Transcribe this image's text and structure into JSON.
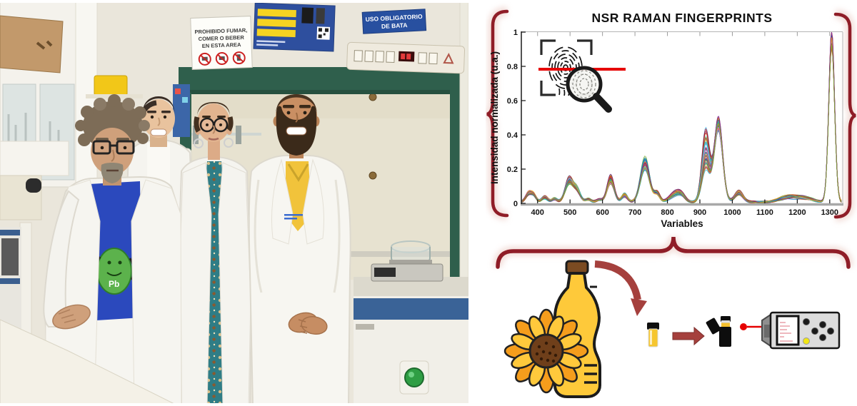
{
  "photo": {
    "signs": {
      "prohibition_lines": [
        "PROHIBIDO FUMAR,",
        "COMER O BEBER",
        "EN ESTA AREA"
      ],
      "bata_lines": [
        "USO OBLIGATORIO",
        "DE BATA"
      ]
    },
    "tshirt_label": "Pb",
    "people_count": "4"
  },
  "chart_data": {
    "type": "line",
    "title": "NSR RAMAN FINGERPRINTS",
    "xlabel": "Variables",
    "ylabel": "Intensidad normalizada (u.a.)",
    "xlim": [
      350,
      1340
    ],
    "ylim": [
      0,
      1
    ],
    "xticks": [
      400,
      500,
      600,
      700,
      800,
      900,
      1000,
      1100,
      1200,
      1300
    ],
    "yticks": [
      0,
      0.2,
      0.4,
      0.6,
      0.8,
      1
    ],
    "grid": false,
    "legend": null,
    "series_count": 55,
    "series_style": "overlapping normalized Raman spectra of oil samples",
    "palette": [
      "#0072BD",
      "#D95319",
      "#EDB120",
      "#7E2F8E",
      "#77AC30",
      "#4DBEEE",
      "#A2142F",
      "#E377C2",
      "#8C564B",
      "#17BECF"
    ],
    "baseline": 0.008,
    "peaks": [
      {
        "center": 372,
        "height": 0.055,
        "width": 9,
        "spread": 0.3
      },
      {
        "center": 388,
        "height": 0.045,
        "width": 8,
        "spread": 0.3
      },
      {
        "center": 422,
        "height": 0.035,
        "width": 9,
        "spread": 0.35
      },
      {
        "center": 452,
        "height": 0.022,
        "width": 8,
        "spread": 0.35
      },
      {
        "center": 497,
        "height": 0.15,
        "width": 12,
        "spread": 0.35
      },
      {
        "center": 521,
        "height": 0.085,
        "width": 11,
        "spread": 0.4
      },
      {
        "center": 556,
        "height": 0.02,
        "width": 8,
        "spread": 0.35
      },
      {
        "center": 590,
        "height": 0.015,
        "width": 9,
        "spread": 0.3
      },
      {
        "center": 625,
        "height": 0.165,
        "width": 11,
        "spread": 0.3
      },
      {
        "center": 668,
        "height": 0.05,
        "width": 9,
        "spread": 0.35
      },
      {
        "center": 731,
        "height": 0.265,
        "width": 14,
        "spread": 0.25
      },
      {
        "center": 768,
        "height": 0.06,
        "width": 9,
        "spread": 0.35
      },
      {
        "center": 822,
        "height": 0.06,
        "width": 16,
        "spread": 0.5
      },
      {
        "center": 843,
        "height": 0.045,
        "width": 12,
        "spread": 0.5
      },
      {
        "center": 918,
        "height": 0.43,
        "width": 12,
        "spread": 0.55
      },
      {
        "center": 957,
        "height": 0.5,
        "width": 13,
        "spread": 0.12
      },
      {
        "center": 1020,
        "height": 0.075,
        "width": 13,
        "spread": 0.45
      },
      {
        "center": 1170,
        "height": 0.038,
        "width": 25,
        "spread": 0.5
      },
      {
        "center": 1222,
        "height": 0.032,
        "width": 25,
        "spread": 0.5
      },
      {
        "center": 1306,
        "height": 1.0,
        "width": 9,
        "spread": 0.04
      }
    ]
  },
  "fingerprint_icon": {
    "parts": [
      "fingerprint-scan-icon",
      "scan-line",
      "magnifier-icon"
    ]
  },
  "workflow": {
    "steps": [
      {
        "icon": "sunflower-icon"
      },
      {
        "icon": "oil-bottle-icon"
      },
      {
        "icon": "pour-arrow-icon"
      },
      {
        "icon": "sample-vial-icon"
      },
      {
        "icon": "transfer-arrow-icon"
      },
      {
        "icon": "vial-in-sample-holder-icon"
      },
      {
        "icon": "laser-beam-icon"
      },
      {
        "icon": "portable-raman-spectrometer-icon"
      }
    ]
  },
  "colors": {
    "accent_red": "#8f1d27",
    "arrow_red": "#a5403d",
    "laser_red": "#e60000",
    "bottle_yellow": "#fec93a",
    "hood_green": "#2f5f4c",
    "sign_blue": "#2850a0"
  }
}
